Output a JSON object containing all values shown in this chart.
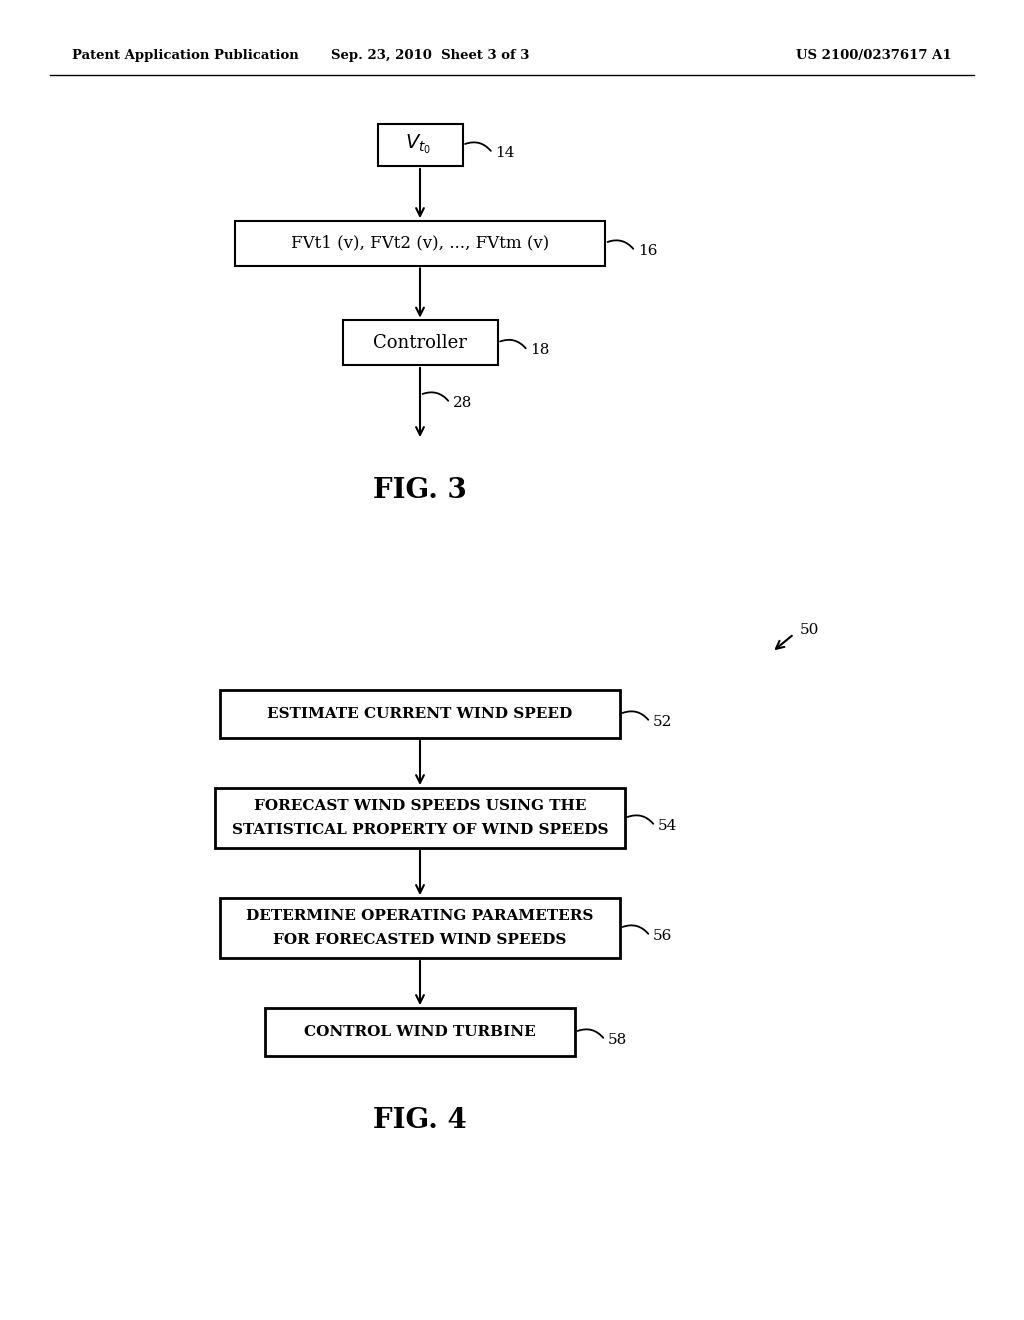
{
  "background_color": "#ffffff",
  "header_left": "Patent Application Publication",
  "header_center": "Sep. 23, 2010  Sheet 3 of 3",
  "header_right": "US 2100/0237617 A1",
  "header_fontsize": 9.5,
  "fig3": {
    "title": "FIG. 3",
    "box2_text": "FVt1 (v), FVt2 (v), ..., FVtm (v)",
    "box2_label": "16",
    "box3_text": "Controller",
    "box3_label": "18",
    "box1_label": "14",
    "arrow_label": "28"
  },
  "fig4": {
    "title": "FIG. 4",
    "label": "50",
    "box1_text": "ESTIMATE CURRENT WIND SPEED",
    "box1_label": "52",
    "box2_line1": "FORECAST WIND SPEEDS USING THE",
    "box2_line2": "STATISTICAL PROPERTY OF WIND SPEEDS",
    "box2_label": "54",
    "box3_line1": "DETERMINE OPERATING PARAMETERS",
    "box3_line2": "FOR FORECASTED WIND SPEEDS",
    "box3_label": "56",
    "box4_text": "CONTROL WIND TURBINE",
    "box4_label": "58"
  }
}
